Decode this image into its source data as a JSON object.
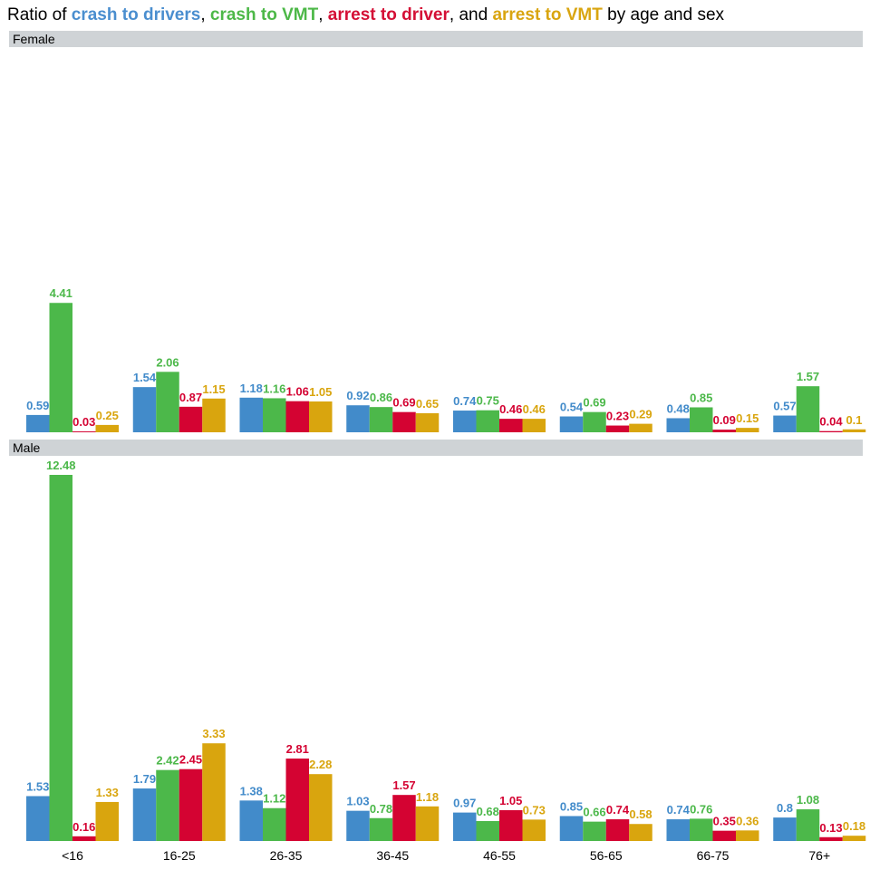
{
  "title_parts": [
    {
      "text": "Ratio of ",
      "highlight": false,
      "color": "#000000"
    },
    {
      "text": "crash to drivers",
      "highlight": true,
      "color": "#4a8ecf"
    },
    {
      "text": ", ",
      "highlight": false,
      "color": "#000000"
    },
    {
      "text": "crash to VMT",
      "highlight": true,
      "color": "#4db848"
    },
    {
      "text": ", ",
      "highlight": false,
      "color": "#000000"
    },
    {
      "text": "arrest to driver",
      "highlight": true,
      "color": "#d40f35"
    },
    {
      "text": ", and ",
      "highlight": false,
      "color": "#000000"
    },
    {
      "text": "arrest to VMT",
      "highlight": true,
      "color": "#d9a510"
    },
    {
      "text": " by age and sex",
      "highlight": false,
      "color": "#000000"
    }
  ],
  "chart_data": {
    "type": "bar",
    "categories": [
      "<16",
      "16-25",
      "26-35",
      "36-45",
      "46-55",
      "56-65",
      "66-75",
      "76+"
    ],
    "series_colors": [
      "#428bca",
      "#4cb84a",
      "#d40332",
      "#d9a50e"
    ],
    "facets": [
      {
        "label": "Female",
        "series": [
          {
            "values": [
              0.59,
              1.54,
              1.18,
              0.92,
              0.74,
              0.54,
              0.48,
              0.57
            ]
          },
          {
            "values": [
              4.41,
              2.06,
              1.16,
              0.86,
              0.75,
              0.69,
              0.85,
              1.57
            ]
          },
          {
            "values": [
              0.03,
              0.87,
              1.06,
              0.69,
              0.46,
              0.23,
              0.09,
              0.04
            ]
          },
          {
            "values": [
              0.25,
              1.15,
              1.05,
              0.65,
              0.46,
              0.29,
              0.15,
              0.1
            ]
          }
        ]
      },
      {
        "label": "Male",
        "series": [
          {
            "values": [
              1.53,
              1.79,
              1.38,
              1.03,
              0.97,
              0.85,
              0.74,
              0.8
            ]
          },
          {
            "values": [
              12.48,
              2.42,
              1.12,
              0.78,
              0.68,
              0.66,
              0.76,
              1.08
            ]
          },
          {
            "values": [
              0.16,
              2.45,
              2.81,
              1.57,
              1.05,
              0.74,
              0.35,
              0.13
            ]
          },
          {
            "values": [
              1.33,
              3.33,
              2.28,
              1.18,
              0.73,
              0.58,
              0.36,
              0.18
            ]
          }
        ]
      }
    ],
    "ylim": [
      0,
      12.48
    ],
    "grid": false,
    "legend": "in title"
  }
}
